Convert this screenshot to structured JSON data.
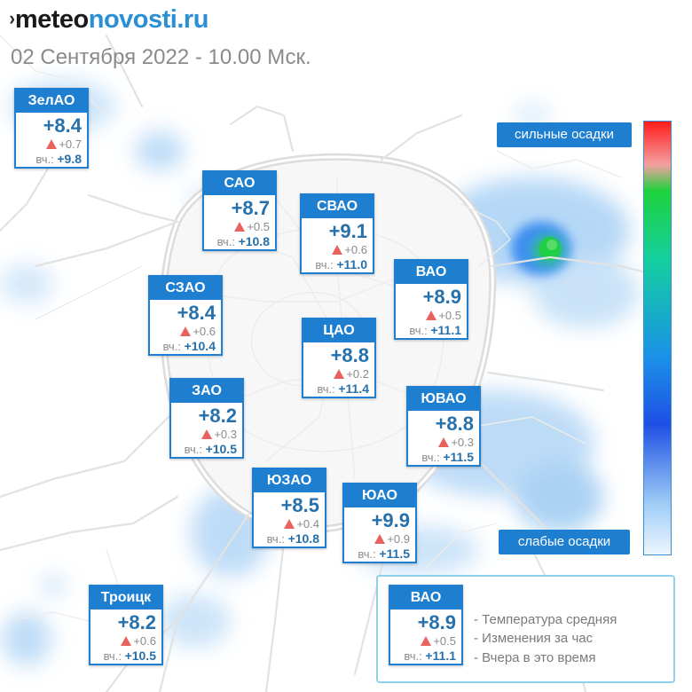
{
  "header": {
    "logo_mark": "›",
    "logo_part1": "meteo",
    "logo_part2": "novosti.ru",
    "subtitle": "02 Сентября 2022 - 10.00 Мск."
  },
  "scale": {
    "top_label": "сильные осадки",
    "bottom_label": "слабые осадки"
  },
  "districts": [
    {
      "name": "ЗелАО",
      "temp": "+8.4",
      "delta": "+0.7",
      "yesterday_label": "вч.:",
      "yesterday": "+9.8"
    },
    {
      "name": "САО",
      "temp": "+8.7",
      "delta": "+0.5",
      "yesterday_label": "вч.:",
      "yesterday": "+10.8"
    },
    {
      "name": "СВАО",
      "temp": "+9.1",
      "delta": "+0.6",
      "yesterday_label": "вч.:",
      "yesterday": "+11.0"
    },
    {
      "name": "ВАО",
      "temp": "+8.9",
      "delta": "+0.5",
      "yesterday_label": "вч.:",
      "yesterday": "+11.1"
    },
    {
      "name": "СЗАО",
      "temp": "+8.4",
      "delta": "+0.6",
      "yesterday_label": "вч.:",
      "yesterday": "+10.4"
    },
    {
      "name": "ЦАО",
      "temp": "+8.8",
      "delta": "+0.2",
      "yesterday_label": "вч.:",
      "yesterday": "+11.4"
    },
    {
      "name": "ЗАО",
      "temp": "+8.2",
      "delta": "+0.3",
      "yesterday_label": "вч.:",
      "yesterday": "+10.5"
    },
    {
      "name": "ЮВАО",
      "temp": "+8.8",
      "delta": "+0.3",
      "yesterday_label": "вч.:",
      "yesterday": "+11.5"
    },
    {
      "name": "ЮЗАО",
      "temp": "+8.5",
      "delta": "+0.4",
      "yesterday_label": "вч.:",
      "yesterday": "+10.8"
    },
    {
      "name": "ЮАО",
      "temp": "+9.9",
      "delta": "+0.9",
      "yesterday_label": "вч.:",
      "yesterday": "+11.5"
    },
    {
      "name": "Троицк",
      "temp": "+8.2",
      "delta": "+0.6",
      "yesterday_label": "вч.:",
      "yesterday": "+10.5"
    }
  ],
  "legend": {
    "sample": {
      "name": "ВАО",
      "temp": "+8.9",
      "delta": "+0.5",
      "yesterday_label": "вч.:",
      "yesterday": "+11.1"
    },
    "line1": "- Температура средняя",
    "line2": "- Изменения за час",
    "line3": "- Вчера в это время"
  },
  "colors": {
    "accent": "#1e7fd0",
    "temperature": "#2670ab",
    "delta_up": "#e9625d",
    "precip_light": "#bcdcf7",
    "precip_heavy": "#1fd23c"
  }
}
